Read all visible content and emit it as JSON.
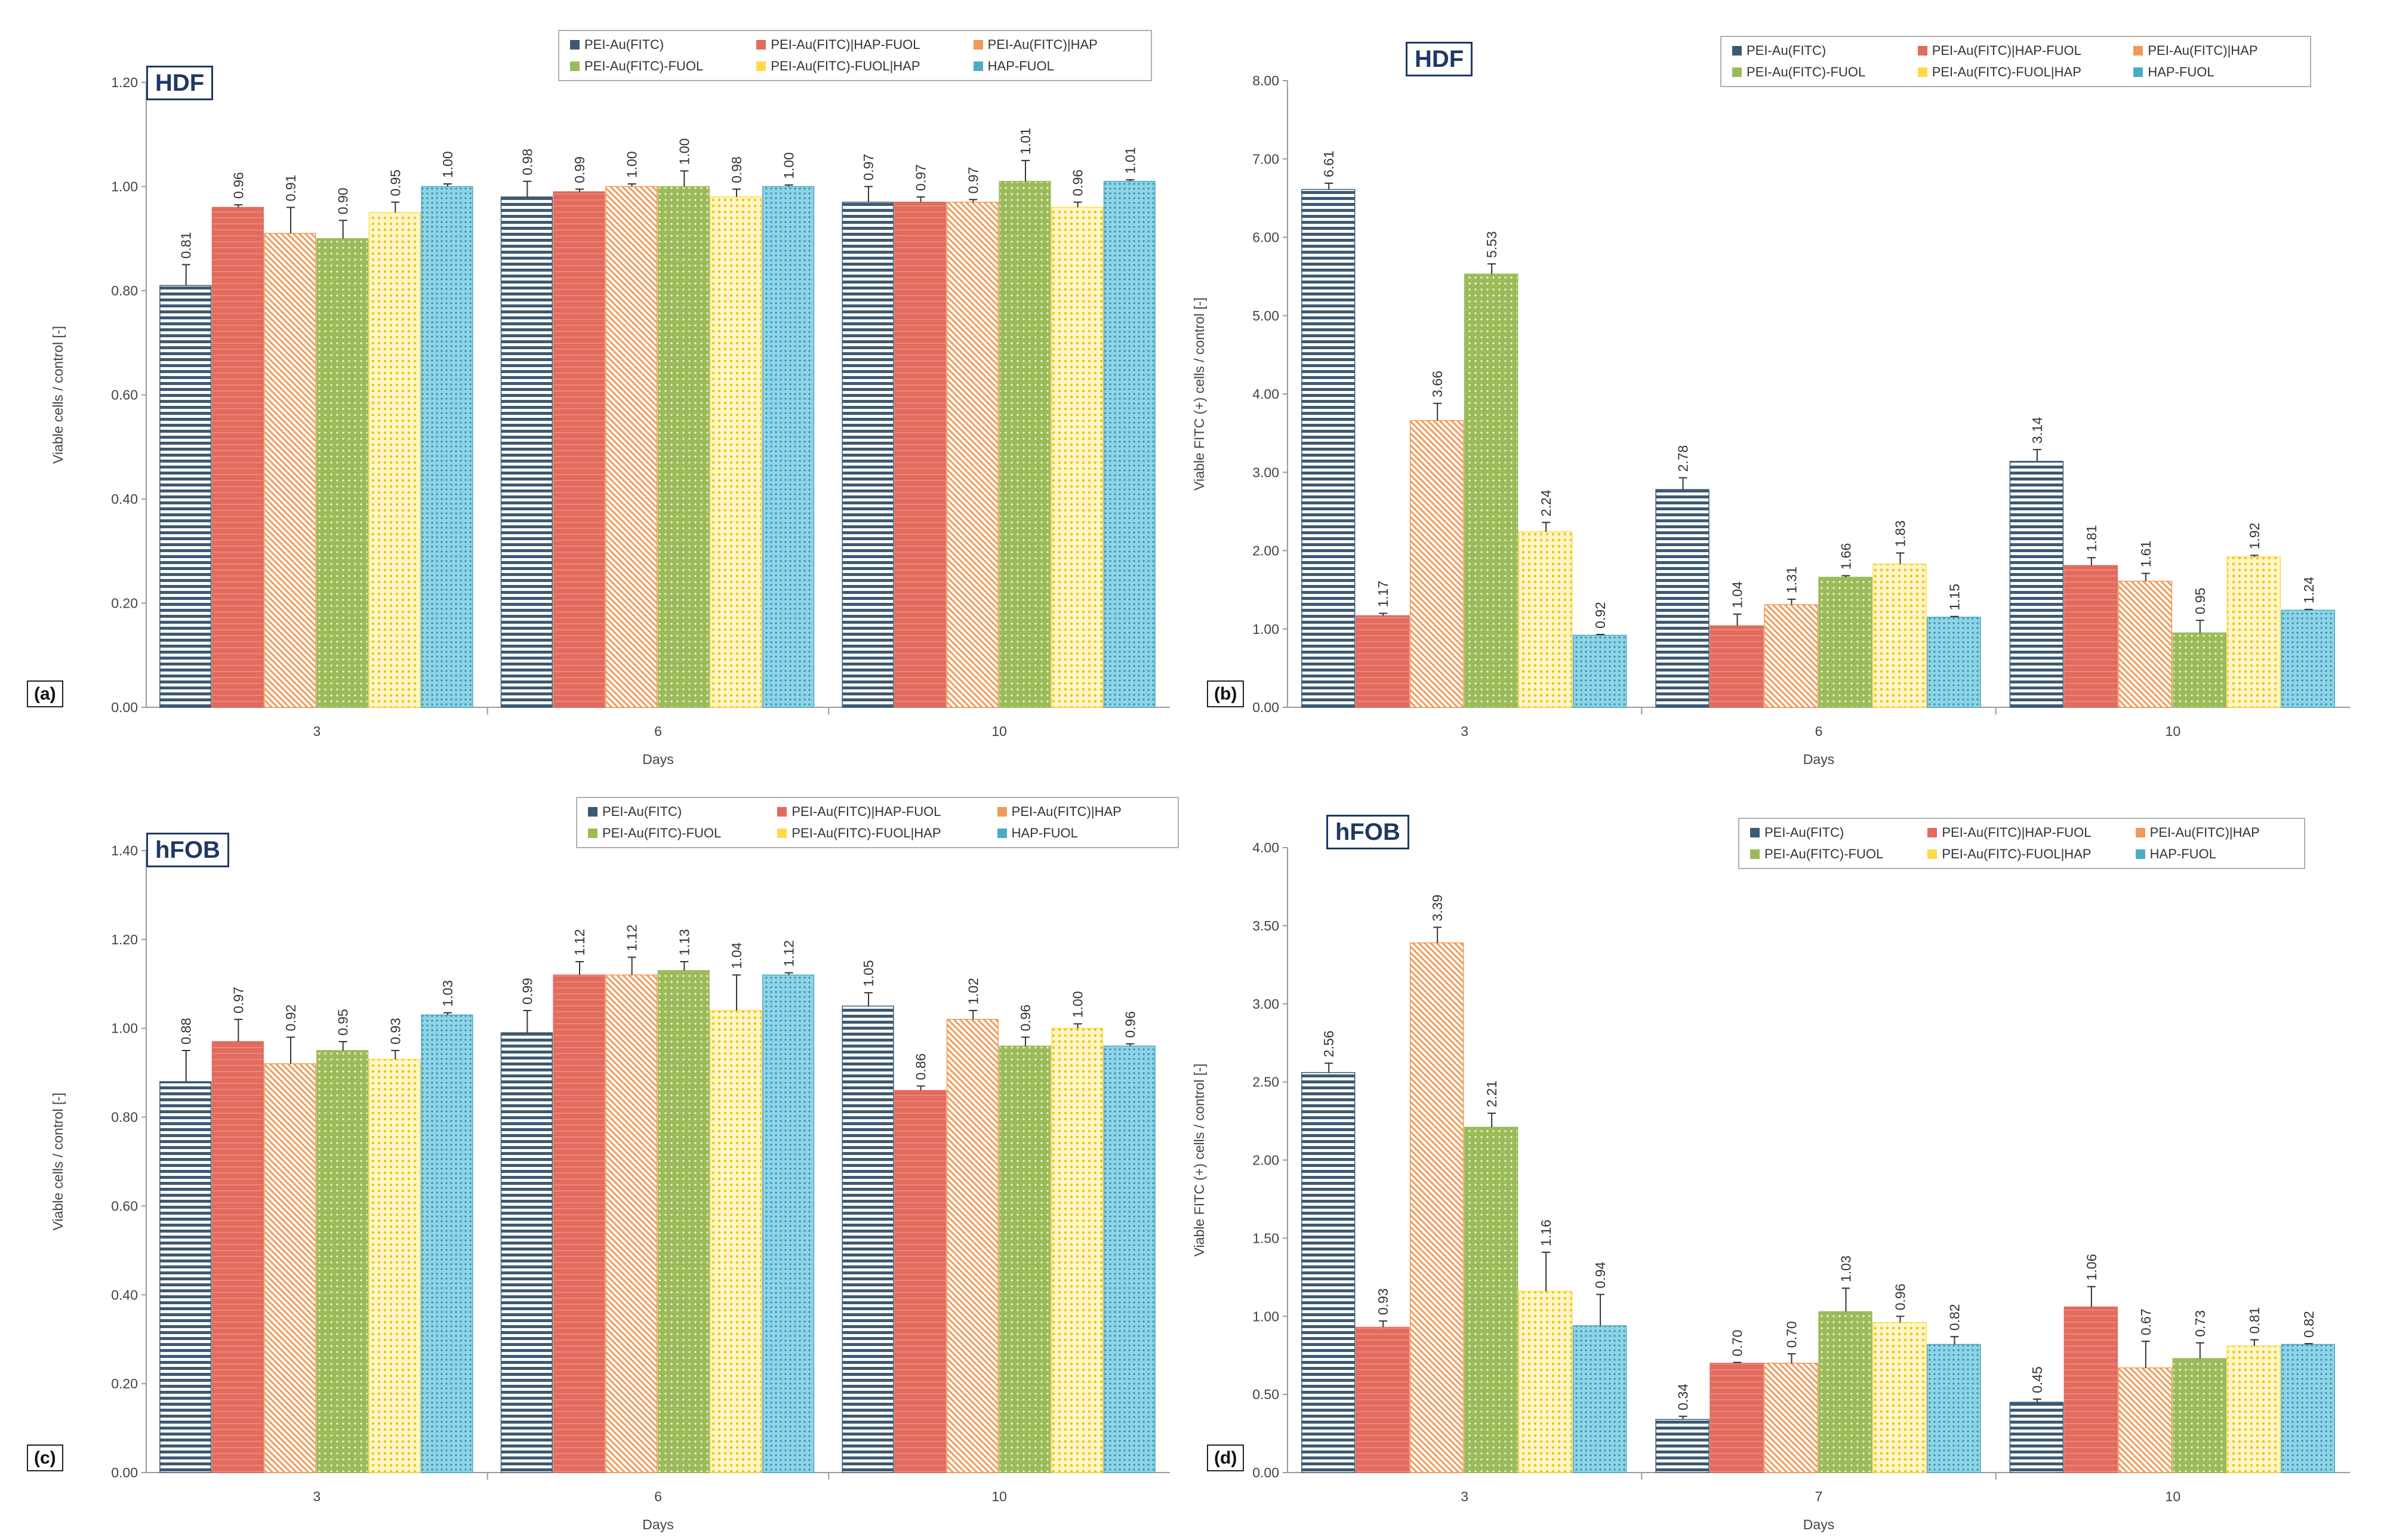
{
  "legend": {
    "entries": [
      "PEI-Au(FITC)",
      "PEI-Au(FITC)|HAP-FUOL",
      "PEI-Au(FITC)|HAP",
      "PEI-Au(FITC)-FUOL",
      "PEI-Au(FITC)-FUOL|HAP",
      "HAP-FUOL"
    ]
  },
  "colors": {
    "series": [
      "#3d5a73",
      "#e26b5e",
      "#f19a57",
      "#9bbb59",
      "#ffd94a",
      "#4bacc6"
    ],
    "axis": "#9a9a9a",
    "label_box": "#1f3864"
  },
  "chart_data": [
    {
      "type": "bar",
      "panel": "(a)",
      "cell_line": "HDF",
      "title": "",
      "xlabel": "Days",
      "ylabel": "Viable cells / control [-]",
      "ylim": [
        0,
        1.2
      ],
      "yticks": [
        "0.00",
        "0.20",
        "0.40",
        "0.60",
        "0.80",
        "1.00",
        "1.20"
      ],
      "categories": [
        "3",
        "6",
        "10"
      ],
      "series": [
        {
          "name": "PEI-Au(FITC)",
          "values": [
            0.81,
            0.98,
            0.97
          ],
          "labels": [
            "0.81",
            "0.98",
            "0.97"
          ],
          "errors": [
            0.04,
            0.03,
            0.03
          ]
        },
        {
          "name": "PEI-Au(FITC)|HAP-FUOL",
          "values": [
            0.96,
            0.99,
            0.97
          ],
          "labels": [
            "0.96",
            "0.99",
            "0.97"
          ],
          "errors": [
            0.005,
            0.005,
            0.01
          ]
        },
        {
          "name": "PEI-Au(FITC)|HAP",
          "values": [
            0.91,
            1.0,
            0.97
          ],
          "labels": [
            "0.91",
            "1.00",
            "0.97"
          ],
          "errors": [
            0.05,
            0.005,
            0.005
          ]
        },
        {
          "name": "PEI-Au(FITC)-FUOL",
          "values": [
            0.9,
            1.0,
            1.01
          ],
          "labels": [
            "0.90",
            "1.00",
            "1.01"
          ],
          "errors": [
            0.035,
            0.03,
            0.04
          ]
        },
        {
          "name": "PEI-Au(FITC)-FUOL|HAP",
          "values": [
            0.95,
            0.98,
            0.96
          ],
          "labels": [
            "0.95",
            "0.98",
            "0.96"
          ],
          "errors": [
            0.02,
            0.015,
            0.01
          ]
        },
        {
          "name": "HAP-FUOL",
          "values": [
            1.0,
            1.0,
            1.01
          ],
          "labels": [
            "1.00",
            "1.00",
            "1.01"
          ],
          "errors": [
            0.005,
            0.003,
            0.003
          ]
        }
      ]
    },
    {
      "type": "bar",
      "panel": "(b)",
      "cell_line": "HDF",
      "title": "",
      "xlabel": "Days",
      "ylabel": "Viable FITC (+) cells / control [-]",
      "ylim": [
        0,
        8
      ],
      "yticks": [
        "0.00",
        "1.00",
        "2.00",
        "3.00",
        "4.00",
        "5.00",
        "6.00",
        "7.00",
        "8.00"
      ],
      "categories": [
        "3",
        "6",
        "10"
      ],
      "series": [
        {
          "name": "PEI-Au(FITC)",
          "values": [
            6.61,
            2.78,
            3.14
          ],
          "labels": [
            "6.61",
            "2.78",
            "3.14"
          ],
          "errors": [
            0.08,
            0.15,
            0.15
          ]
        },
        {
          "name": "PEI-Au(FITC)|HAP-FUOL",
          "values": [
            1.17,
            1.04,
            1.81
          ],
          "labels": [
            "1.17",
            "1.04",
            "1.81"
          ],
          "errors": [
            0.03,
            0.15,
            0.1
          ]
        },
        {
          "name": "PEI-Au(FITC)|HAP",
          "values": [
            3.66,
            1.31,
            1.61
          ],
          "labels": [
            "3.66",
            "1.31",
            "1.61"
          ],
          "errors": [
            0.22,
            0.07,
            0.1
          ]
        },
        {
          "name": "PEI-Au(FITC)-FUOL",
          "values": [
            5.53,
            1.66,
            0.95
          ],
          "labels": [
            "5.53",
            "1.66",
            "0.95"
          ],
          "errors": [
            0.13,
            0.02,
            0.16
          ]
        },
        {
          "name": "PEI-Au(FITC)-FUOL|HAP",
          "values": [
            2.24,
            1.83,
            1.92
          ],
          "labels": [
            "2.24",
            "1.83",
            "1.92"
          ],
          "errors": [
            0.12,
            0.14,
            0.02
          ]
        },
        {
          "name": "HAP-FUOL",
          "values": [
            0.92,
            1.15,
            1.24
          ],
          "labels": [
            "0.92",
            "1.15",
            "1.24"
          ],
          "errors": [
            0.01,
            0.01,
            0.01
          ]
        }
      ]
    },
    {
      "type": "bar",
      "panel": "(c)",
      "cell_line": "hFOB",
      "title": "",
      "xlabel": "Days",
      "ylabel": "Viable cells / control [-]",
      "ylim": [
        0,
        1.4
      ],
      "yticks": [
        "0.00",
        "0.20",
        "0.40",
        "0.60",
        "0.80",
        "1.00",
        "1.20",
        "1.40"
      ],
      "categories": [
        "3",
        "6",
        "10"
      ],
      "series": [
        {
          "name": "PEI-Au(FITC)",
          "values": [
            0.88,
            0.99,
            1.05
          ],
          "labels": [
            "0.88",
            "0.99",
            "1.05"
          ],
          "errors": [
            0.07,
            0.05,
            0.03
          ]
        },
        {
          "name": "PEI-Au(FITC)|HAP-FUOL",
          "values": [
            0.97,
            1.12,
            0.86
          ],
          "labels": [
            "0.97",
            "1.12",
            "0.86"
          ],
          "errors": [
            0.05,
            0.03,
            0.01
          ]
        },
        {
          "name": "PEI-Au(FITC)|HAP",
          "values": [
            0.92,
            1.12,
            1.02
          ],
          "labels": [
            "0.92",
            "1.12",
            "1.02"
          ],
          "errors": [
            0.06,
            0.04,
            0.02
          ]
        },
        {
          "name": "PEI-Au(FITC)-FUOL",
          "values": [
            0.95,
            1.13,
            0.96
          ],
          "labels": [
            "0.95",
            "1.13",
            "0.96"
          ],
          "errors": [
            0.02,
            0.02,
            0.02
          ]
        },
        {
          "name": "PEI-Au(FITC)-FUOL|HAP",
          "values": [
            0.93,
            1.04,
            1.0
          ],
          "labels": [
            "0.93",
            "1.04",
            "1.00"
          ],
          "errors": [
            0.02,
            0.08,
            0.01
          ]
        },
        {
          "name": "HAP-FUOL",
          "values": [
            1.03,
            1.12,
            0.96
          ],
          "labels": [
            "1.03",
            "1.12",
            "0.96"
          ],
          "errors": [
            0.005,
            0.005,
            0.005
          ]
        }
      ]
    },
    {
      "type": "bar",
      "panel": "(d)",
      "cell_line": "hFOB",
      "title": "",
      "xlabel": "Days",
      "ylabel": "Viable FITC (+) cells / control [-]",
      "ylim": [
        0,
        4
      ],
      "yticks": [
        "0.00",
        "0.50",
        "1.00",
        "1.50",
        "2.00",
        "2.50",
        "3.00",
        "3.50",
        "4.00"
      ],
      "categories": [
        "3",
        "7",
        "10"
      ],
      "series": [
        {
          "name": "PEI-Au(FITC)",
          "values": [
            2.56,
            0.34,
            0.45
          ],
          "labels": [
            "2.56",
            "0.34",
            "0.45"
          ],
          "errors": [
            0.06,
            0.02,
            0.02
          ]
        },
        {
          "name": "PEI-Au(FITC)|HAP-FUOL",
          "values": [
            0.93,
            0.7,
            1.06
          ],
          "labels": [
            "0.93",
            "0.70",
            "1.06"
          ],
          "errors": [
            0.04,
            0.005,
            0.13
          ]
        },
        {
          "name": "PEI-Au(FITC)|HAP",
          "values": [
            3.39,
            0.7,
            0.67
          ],
          "labels": [
            "3.39",
            "0.70",
            "0.67"
          ],
          "errors": [
            0.1,
            0.06,
            0.17
          ]
        },
        {
          "name": "PEI-Au(FITC)-FUOL",
          "values": [
            2.21,
            1.03,
            0.73
          ],
          "labels": [
            "2.21",
            "1.03",
            "0.73"
          ],
          "errors": [
            0.09,
            0.15,
            0.1
          ]
        },
        {
          "name": "PEI-Au(FITC)-FUOL|HAP",
          "values": [
            1.16,
            0.96,
            0.81
          ],
          "labels": [
            "1.16",
            "0.96",
            "0.81"
          ],
          "errors": [
            0.25,
            0.04,
            0.04
          ]
        },
        {
          "name": "HAP-FUOL",
          "values": [
            0.94,
            0.82,
            0.82
          ],
          "labels": [
            "0.94",
            "0.82",
            "0.82"
          ],
          "errors": [
            0.2,
            0.05,
            0.005
          ]
        }
      ]
    }
  ]
}
